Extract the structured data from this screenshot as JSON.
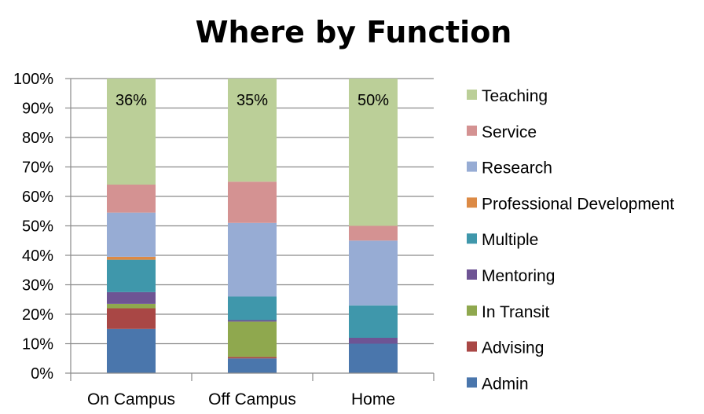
{
  "chart_data": {
    "type": "bar",
    "stacked": true,
    "title": "Where by Function",
    "xlabel": "",
    "ylabel": "",
    "ylim": [
      0,
      100
    ],
    "y_ticks": [
      "0%",
      "10%",
      "20%",
      "30%",
      "40%",
      "50%",
      "60%",
      "70%",
      "80%",
      "90%",
      "100%"
    ],
    "categories": [
      "On Campus",
      "Off Campus",
      "Home"
    ],
    "grid": true,
    "legend_position": "right",
    "series": [
      {
        "name": "Admin",
        "color": "#4A76AC",
        "values": [
          15,
          5,
          10
        ]
      },
      {
        "name": "Advising",
        "color": "#A94745",
        "values": [
          7,
          0.5,
          0
        ]
      },
      {
        "name": "In Transit",
        "color": "#8FA84E",
        "values": [
          1.5,
          12,
          0
        ]
      },
      {
        "name": "Mentoring",
        "color": "#6E5494",
        "values": [
          4,
          0.5,
          2
        ]
      },
      {
        "name": "Multiple",
        "color": "#3F97AB",
        "values": [
          11,
          8,
          11
        ]
      },
      {
        "name": "Professional Development",
        "color": "#DC8A45",
        "values": [
          1,
          0,
          0
        ]
      },
      {
        "name": "Research",
        "color": "#97ACD4",
        "values": [
          15,
          25,
          22
        ]
      },
      {
        "name": "Service",
        "color": "#D49292",
        "values": [
          9.5,
          14,
          5
        ]
      },
      {
        "name": "Teaching",
        "color": "#BBCF98",
        "values": [
          36,
          35,
          50
        ]
      }
    ],
    "data_labels": {
      "series": "Teaching",
      "labels": [
        "36%",
        "35%",
        "50%"
      ]
    }
  }
}
